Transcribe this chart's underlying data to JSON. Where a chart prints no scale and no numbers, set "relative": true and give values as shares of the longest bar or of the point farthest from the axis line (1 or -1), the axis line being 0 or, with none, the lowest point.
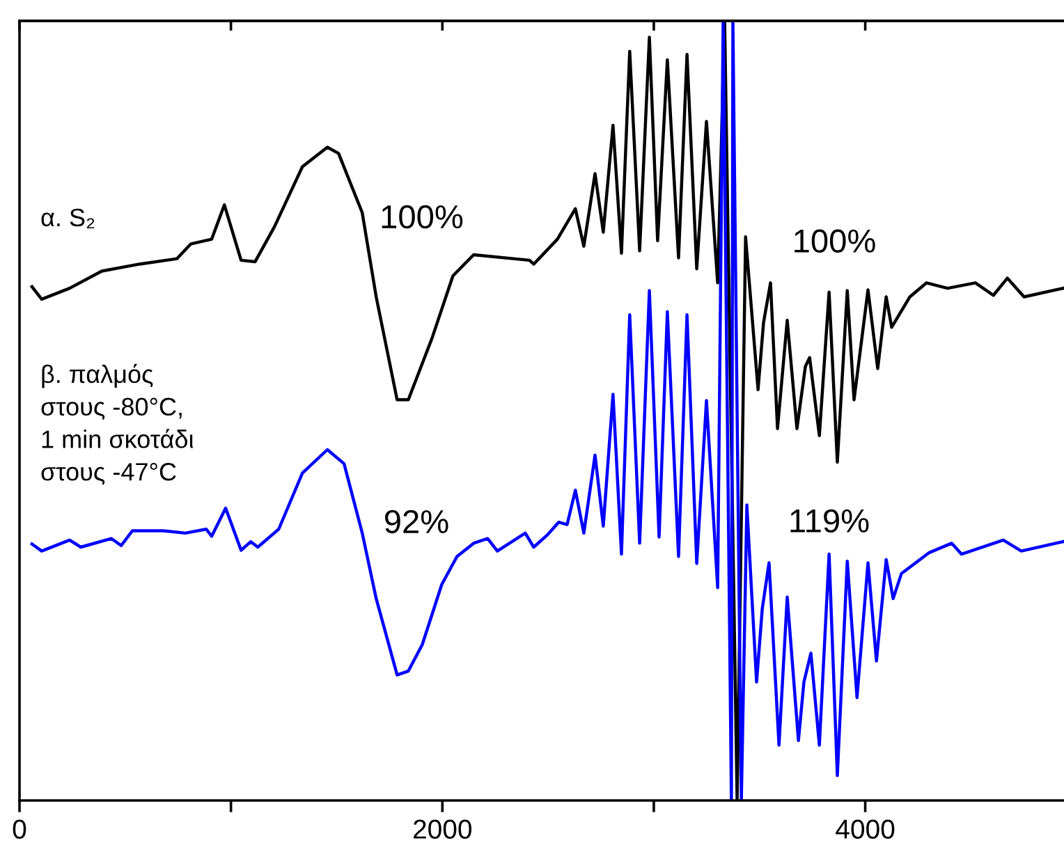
{
  "chart_data": {
    "type": "line",
    "relative": true,
    "legend": false,
    "grid": false,
    "marker": "none",
    "line_style": "solid",
    "tick_labels": "x",
    "xlim": [
      0,
      4940
    ],
    "xticks": [
      0,
      {
        "value": 1000,
        "label": null
      },
      2000,
      {
        "value": 3000,
        "label": null
      },
      4000
    ],
    "annotations": [
      "100%",
      "100%",
      "92%",
      "119%"
    ],
    "series": [
      {
        "name": "α. S₂",
        "color": "#000000",
        "x": [
          59,
          105,
          237,
          389,
          567,
          745,
          811,
          909,
          969,
          1048,
          1114,
          1206,
          1338,
          1456,
          1509,
          1621,
          1687,
          1786,
          1839,
          1951,
          2050,
          2148,
          2412,
          2432,
          2544,
          2629,
          2669,
          2722,
          2761,
          2807,
          2847,
          2886,
          2933,
          2979,
          3018,
          3064,
          3117,
          3157,
          3203,
          3249,
          3302,
          3335,
          3394,
          3434,
          3493,
          3519,
          3552,
          3585,
          3631,
          3677,
          3717,
          3737,
          3783,
          3829,
          3868,
          3915,
          3947,
          4013,
          4059,
          4099,
          4125,
          4211,
          4290,
          4389,
          4521,
          4606,
          4672,
          4751,
          4936
        ],
        "values": [
          0.659,
          0.643,
          0.657,
          0.679,
          0.688,
          0.695,
          0.714,
          0.72,
          0.764,
          0.693,
          0.691,
          0.736,
          0.813,
          0.838,
          0.83,
          0.754,
          0.646,
          0.514,
          0.514,
          0.593,
          0.673,
          0.7,
          0.693,
          0.688,
          0.72,
          0.759,
          0.711,
          0.804,
          0.729,
          0.866,
          0.702,
          0.961,
          0.705,
          0.979,
          0.718,
          0.95,
          0.696,
          0.957,
          0.682,
          0.871,
          0.664,
          1,
          0,
          0.723,
          0.527,
          0.613,
          0.664,
          0.477,
          0.616,
          0.477,
          0.557,
          0.568,
          0.468,
          0.652,
          0.434,
          0.654,
          0.514,
          0.655,
          0.554,
          0.646,
          0.607,
          0.646,
          0.664,
          0.657,
          0.664,
          0.648,
          0.67,
          0.646,
          0.657
        ]
      },
      {
        "name": "β. παλμός\nστους -80°C,\n1 min σκοτάδι\nστους -47°C",
        "color": "#0000ff",
        "x": [
          59,
          105,
          237,
          290,
          435,
          481,
          534,
          679,
          784,
          883,
          909,
          975,
          1048,
          1094,
          1127,
          1226,
          1338,
          1456,
          1535,
          1621,
          1687,
          1786,
          1839,
          1905,
          1997,
          2069,
          2148,
          2214,
          2260,
          2392,
          2432,
          2498,
          2550,
          2590,
          2629,
          2669,
          2722,
          2761,
          2807,
          2847,
          2886,
          2933,
          2979,
          3025,
          3064,
          3117,
          3157,
          3203,
          3249,
          3302,
          3328,
          3367,
          3374,
          3414,
          3440,
          3486,
          3513,
          3545,
          3592,
          3631,
          3684,
          3710,
          3743,
          3783,
          3829,
          3868,
          3915,
          3961,
          4013,
          4053,
          4099,
          4132,
          4171,
          4303,
          4409,
          4455,
          4653,
          4738,
          4936
        ],
        "values": [
          0.329,
          0.32,
          0.334,
          0.325,
          0.336,
          0.327,
          0.346,
          0.346,
          0.343,
          0.348,
          0.339,
          0.375,
          0.321,
          0.332,
          0.325,
          0.348,
          0.42,
          0.45,
          0.432,
          0.343,
          0.259,
          0.161,
          0.166,
          0.2,
          0.277,
          0.313,
          0.33,
          0.336,
          0.32,
          0.343,
          0.325,
          0.341,
          0.357,
          0.354,
          0.398,
          0.343,
          0.443,
          0.352,
          0.521,
          0.316,
          0.623,
          0.33,
          0.654,
          0.338,
          0.627,
          0.313,
          0.623,
          0.304,
          0.513,
          0.273,
          1,
          0,
          1,
          0,
          0.379,
          0.152,
          0.246,
          0.305,
          0.071,
          0.261,
          0.077,
          0.152,
          0.189,
          0.071,
          0.316,
          0.032,
          0.307,
          0.132,
          0.305,
          0.179,
          0.309,
          0.259,
          0.291,
          0.318,
          0.33,
          0.316,
          0.334,
          0.32,
          0.332
        ]
      }
    ]
  }
}
